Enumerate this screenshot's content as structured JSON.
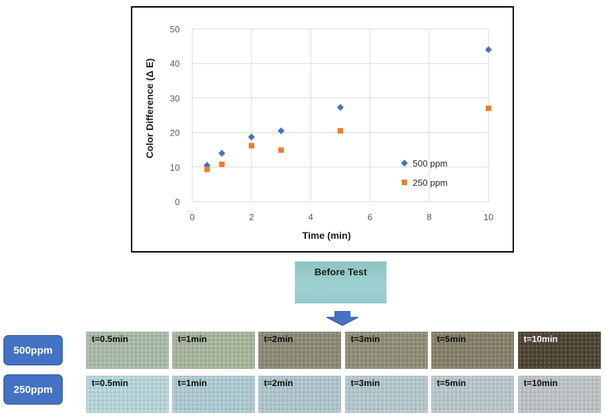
{
  "chart_data": {
    "type": "scatter",
    "xlabel": "Time (min)",
    "ylabel": "Color Difference (Δ E)",
    "xlim": [
      0,
      10
    ],
    "ylim": [
      0,
      50
    ],
    "xticks": [
      0,
      2,
      4,
      6,
      8,
      10
    ],
    "yticks": [
      0,
      10,
      20,
      30,
      40,
      50
    ],
    "grid": true,
    "legend_position": "right",
    "series": [
      {
        "name": "500 ppm",
        "marker": "diamond",
        "color": "#4472c4",
        "x": [
          0.5,
          1,
          2,
          3,
          5,
          10
        ],
        "y": [
          10.5,
          14,
          18.7,
          20.5,
          27.3,
          44
        ]
      },
      {
        "name": "250 ppm",
        "marker": "square",
        "color": "#ed7d31",
        "x": [
          0.5,
          1,
          2,
          3,
          5,
          10
        ],
        "y": [
          9.3,
          10.8,
          16.2,
          14.9,
          20.5,
          27
        ]
      }
    ]
  },
  "before_test": {
    "label": "Before Test",
    "color": "#96cbcc"
  },
  "rows": [
    {
      "label": "500ppm",
      "samples": [
        {
          "label": "t=0.5min",
          "color": "#a8b9aa"
        },
        {
          "label": "t=1min",
          "color": "#a6b49c"
        },
        {
          "label": "t=2min",
          "color": "#8a8a76"
        },
        {
          "label": "t=3min",
          "color": "#8e8e78"
        },
        {
          "label": "t=5min",
          "color": "#858069"
        },
        {
          "label": "t=10min",
          "color": "#4d4533"
        }
      ]
    },
    {
      "label": "250ppm",
      "samples": [
        {
          "label": "t=0.5min",
          "color": "#b6d4d8"
        },
        {
          "label": "t=1min",
          "color": "#adc8d0"
        },
        {
          "label": "t=2min",
          "color": "#aec5cc"
        },
        {
          "label": "t=3min",
          "color": "#b3c6cb"
        },
        {
          "label": "t=5min",
          "color": "#b8c6ca"
        },
        {
          "label": "t=10min",
          "color": "#bcc2c4"
        }
      ]
    }
  ]
}
